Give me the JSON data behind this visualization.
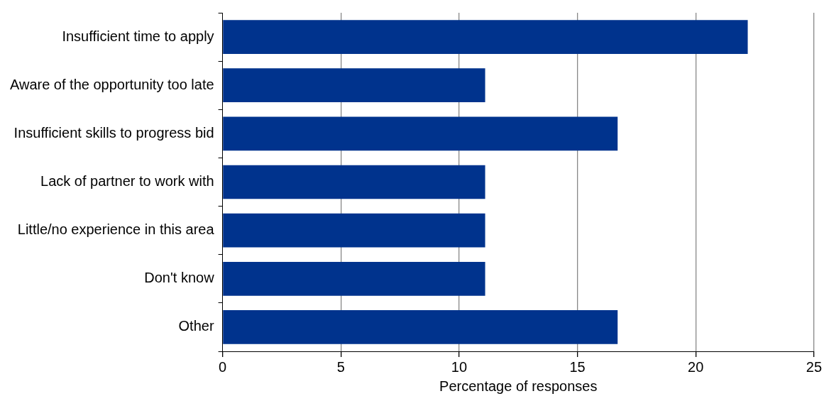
{
  "chart_data": {
    "type": "bar",
    "orientation": "horizontal",
    "xlabel": "Percentage of responses",
    "categories": [
      "Insufficient time to apply",
      "Aware of the opportunity too late",
      "Insufficient skills to progress bid",
      "Lack of partner to work with",
      "Little/no experience in this area",
      "Don't know",
      "Other"
    ],
    "values": [
      22.2,
      11.1,
      16.7,
      11.1,
      11.1,
      11.1,
      16.7
    ],
    "color": "#00338d",
    "xlim": [
      0,
      25
    ],
    "xticks": [
      0,
      5,
      10,
      15,
      20,
      25
    ],
    "grid": "x",
    "legend": false
  }
}
